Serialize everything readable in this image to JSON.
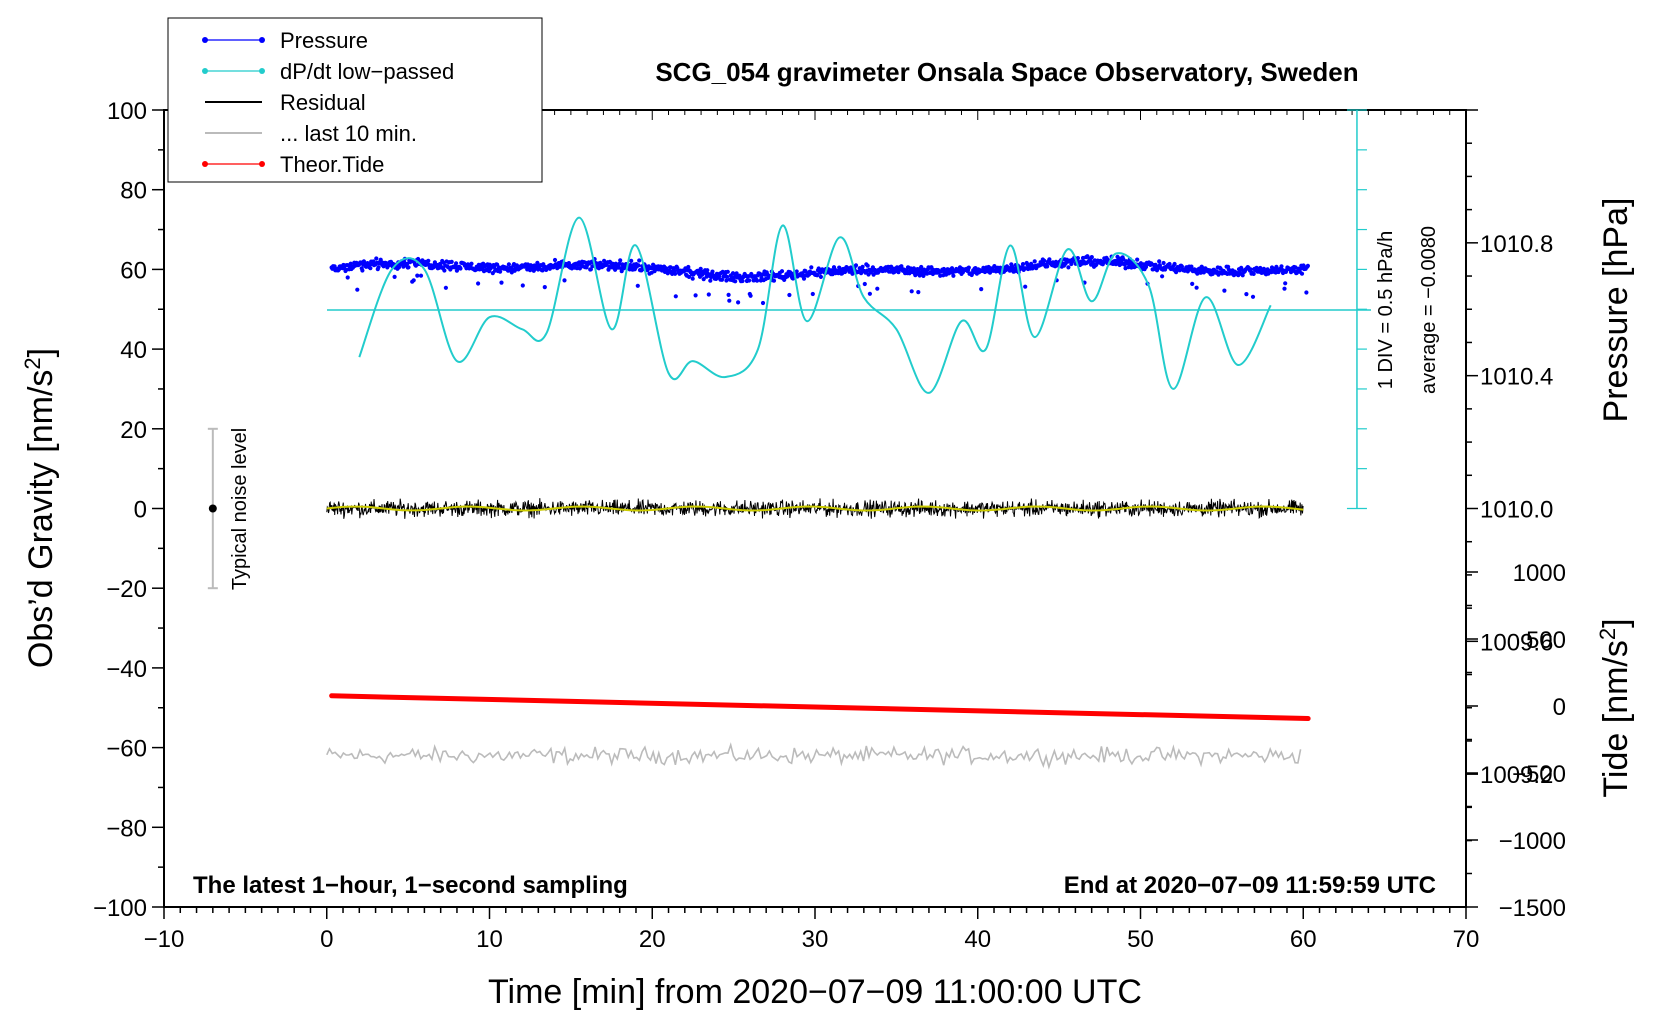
{
  "chart_data": {
    "type": "line",
    "title": "SCG_054 gravimeter Onsala Space Observatory, Sweden",
    "xlabel": "Time [min] from 2020−07−09 11:00:00 UTC",
    "ylabel": "Obs’d Gravity [nm/s",
    "ylabel_sup": "2",
    "ylabel_end": "]",
    "xlim": [
      -10,
      70
    ],
    "ylim": [
      -100,
      100
    ],
    "xticks": [
      "−10",
      "0",
      "10",
      "20",
      "30",
      "40",
      "50",
      "60",
      "70"
    ],
    "yticks": [
      "−100",
      "−80",
      "−60",
      "−40",
      "−20",
      "0",
      "20",
      "40",
      "60",
      "80",
      "100"
    ],
    "pressure_axis": {
      "label": "Pressure [hPa]",
      "range": [
        1008.8,
        1011.2
      ],
      "ticks": [
        "1009.2",
        "1009.6",
        "1010.0",
        "1010.4",
        "1010.8"
      ]
    },
    "tide_axis": {
      "label": "Tide [nm/s",
      "label_sup": "2",
      "label_end": "]",
      "range": [
        -1500,
        1000
      ],
      "ticks": [
        "−1500",
        "−1000",
        "−500",
        "0",
        "500",
        "1000"
      ]
    },
    "legend": [
      {
        "label": "Pressure",
        "color": "#0000ff",
        "marker": true
      },
      {
        "label": "dP/dt low−passed",
        "color": "#22cccc",
        "marker": true
      },
      {
        "label": "Residual",
        "color": "#000000",
        "marker": false
      },
      {
        "label": "... last 10 min.",
        "color": "#bbbbbb",
        "marker": false
      },
      {
        "label": "Theor.Tide",
        "color": "#ff0000",
        "marker": true
      }
    ],
    "noise_label": "Typical noise level",
    "noise_bar": {
      "x": -7,
      "y_low": -20,
      "y_high": 20
    },
    "dpdt_scale": {
      "div_label": "1 DIV = 0.5 hPa/h",
      "average_label": "average = −0.0080",
      "zero_line_y": 50
    },
    "footer_left": "The latest 1−hour, 1−second sampling",
    "footer_right": "End at 2020−07−09 11:59:59 UTC",
    "series": [
      {
        "name": "Pressure",
        "color": "#0000ff",
        "x_range": [
          0.3,
          60.3
        ],
        "y_center": 60,
        "y_spread": 2.5
      },
      {
        "name": "dP/dt low−passed",
        "color": "#22cccc",
        "x": [
          2,
          4,
          6,
          8,
          10,
          12,
          13.5,
          15.5,
          17.5,
          19,
          21,
          22.5,
          24.5,
          26.5,
          28,
          29.5,
          31.5,
          33,
          35,
          37,
          39,
          40.5,
          42,
          43.5,
          45.5,
          47,
          48.5,
          50.5,
          52,
          54,
          56,
          58
        ],
        "y": [
          38,
          60,
          60,
          37,
          48,
          45,
          44,
          73,
          45,
          66,
          34,
          37,
          33,
          40,
          71,
          47,
          68,
          53,
          45,
          29,
          47,
          40,
          66,
          43,
          65,
          52,
          64,
          56,
          30,
          53,
          36,
          51
        ]
      },
      {
        "name": "Residual",
        "color": "#000000",
        "x_range": [
          0,
          60
        ],
        "y_center": 0,
        "y_spread": 3
      },
      {
        "name": "Residual smoothed",
        "color": "#cccc00",
        "x_range": [
          0,
          60
        ],
        "y_center": 0
      },
      {
        "name": "Theor.Tide",
        "color": "#ff0000",
        "x": [
          0.3,
          60.3
        ],
        "y": [
          -47,
          -52.7
        ]
      },
      {
        "name": "... last 10 min.",
        "color": "#bbbbbb",
        "x_range": [
          0,
          60
        ],
        "y_center": -62,
        "y_spread": 3
      }
    ]
  }
}
